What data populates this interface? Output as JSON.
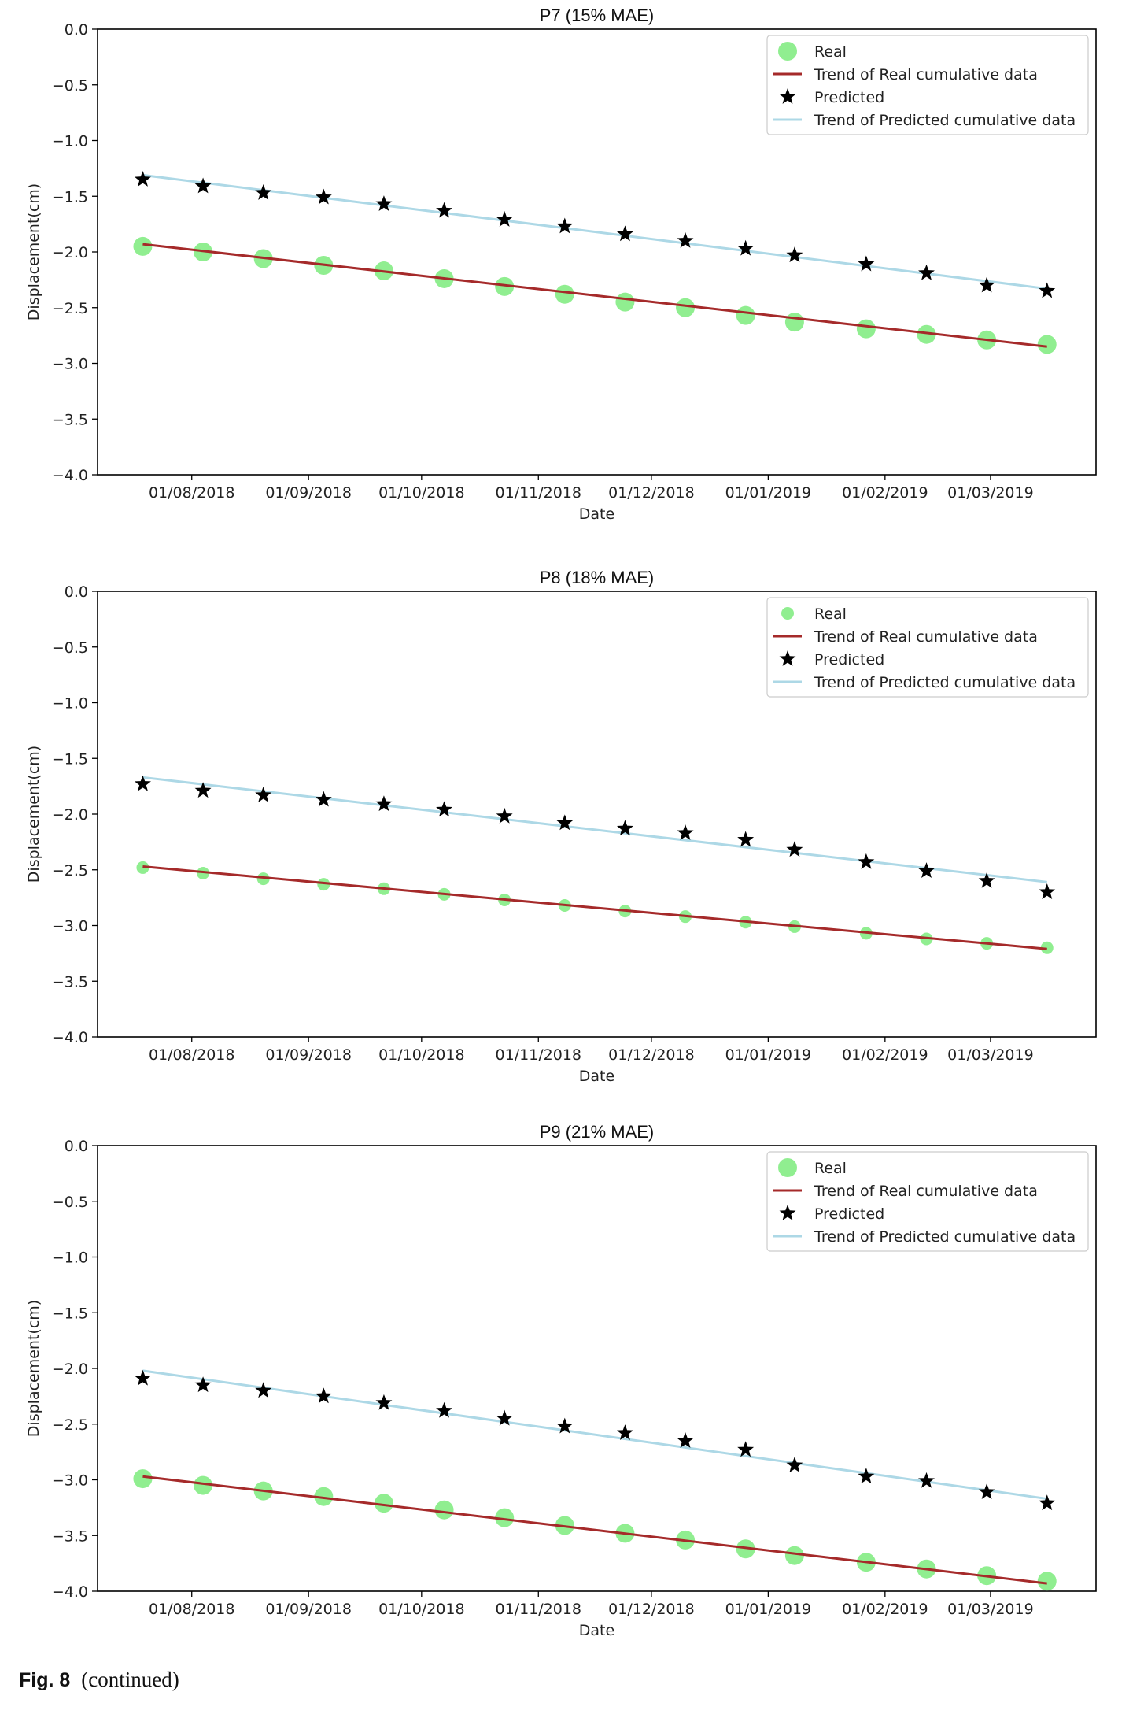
{
  "caption": {
    "label": "Fig. 8",
    "text": "(continued)"
  },
  "colors": {
    "real": "#90ee90",
    "trend_real": "#a52a2a",
    "predicted": "#000000",
    "trend_predicted": "#add8e6"
  },
  "chart_data": [
    {
      "type": "scatter",
      "title_prefix": "P7",
      "title_suffix": "(15% MAE)",
      "xlabel": "Date",
      "ylabel": "Displacement(cm)",
      "ylim": [
        -4.0,
        0.0
      ],
      "yticks": [
        "0.0",
        "−0.5",
        "−1.0",
        "−1.5",
        "−2.0",
        "−2.5",
        "−3.0",
        "−3.5",
        "−4.0"
      ],
      "ytick_values": [
        0.0,
        -0.5,
        -1.0,
        -1.5,
        -2.0,
        -2.5,
        -3.0,
        -3.5,
        -4.0
      ],
      "xlim": [
        0,
        265
      ],
      "xticks": [
        "01/08/2018",
        "01/09/2018",
        "01/10/2018",
        "01/11/2018",
        "01/12/2018",
        "01/01/2019",
        "01/02/2019",
        "01/03/2019"
      ],
      "xtick_values": [
        25,
        56,
        86,
        117,
        147,
        178,
        209,
        237
      ],
      "legend": [
        "Real",
        "Trend of Real cumulative data",
        "Predicted",
        "Trend of Predicted cumulative data"
      ],
      "legend_position": "top-right",
      "x": [
        12,
        28,
        44,
        60,
        76,
        92,
        108,
        124,
        140,
        156,
        172,
        185,
        204,
        220,
        236,
        252
      ],
      "series": [
        {
          "name": "Real",
          "kind": "marker",
          "values": [
            -1.95,
            -2.0,
            -2.06,
            -2.12,
            -2.17,
            -2.24,
            -2.31,
            -2.38,
            -2.45,
            -2.5,
            -2.57,
            -2.63,
            -2.69,
            -2.74,
            -2.79,
            -2.83
          ]
        },
        {
          "name": "Trend of Real cumulative data",
          "kind": "line",
          "x": [
            12,
            252
          ],
          "values": [
            -1.93,
            -2.85
          ]
        },
        {
          "name": "Predicted",
          "kind": "marker",
          "values": [
            -1.35,
            -1.41,
            -1.47,
            -1.51,
            -1.57,
            -1.63,
            -1.71,
            -1.77,
            -1.84,
            -1.9,
            -1.97,
            -2.03,
            -2.11,
            -2.19,
            -2.3,
            -2.35
          ]
        },
        {
          "name": "Trend of Predicted cumulative data",
          "kind": "line",
          "x": [
            12,
            252
          ],
          "values": [
            -1.31,
            -2.33
          ]
        }
      ]
    },
    {
      "type": "scatter",
      "title_prefix": "P8",
      "title_suffix": "(18% MAE)",
      "xlabel": "Date",
      "ylabel": "Displacement(cm)",
      "ylim": [
        -4.0,
        0.0
      ],
      "yticks": [
        "0.0",
        "−0.5",
        "−1.0",
        "−1.5",
        "−2.0",
        "−2.5",
        "−3.0",
        "−3.5",
        "−4.0"
      ],
      "ytick_values": [
        0.0,
        -0.5,
        -1.0,
        -1.5,
        -2.0,
        -2.5,
        -3.0,
        -3.5,
        -4.0
      ],
      "xlim": [
        0,
        265
      ],
      "xticks": [
        "01/08/2018",
        "01/09/2018",
        "01/10/2018",
        "01/11/2018",
        "01/12/2018",
        "01/01/2019",
        "01/02/2019",
        "01/03/2019"
      ],
      "xtick_values": [
        25,
        56,
        86,
        117,
        147,
        178,
        209,
        237
      ],
      "legend": [
        "Real",
        "Trend of Real cumulative data",
        "Predicted",
        "Trend of Predicted cumulative data"
      ],
      "legend_position": "top-right",
      "x": [
        12,
        28,
        44,
        60,
        76,
        92,
        108,
        124,
        140,
        156,
        172,
        185,
        204,
        220,
        236,
        252
      ],
      "series": [
        {
          "name": "Real",
          "kind": "marker",
          "values": [
            -2.48,
            -2.53,
            -2.58,
            -2.63,
            -2.67,
            -2.72,
            -2.77,
            -2.82,
            -2.87,
            -2.92,
            -2.97,
            -3.01,
            -3.07,
            -3.12,
            -3.16,
            -3.2
          ]
        },
        {
          "name": "Trend of Real cumulative data",
          "kind": "line",
          "x": [
            12,
            252
          ],
          "values": [
            -2.47,
            -3.21
          ]
        },
        {
          "name": "Predicted",
          "kind": "marker",
          "values": [
            -1.73,
            -1.79,
            -1.83,
            -1.87,
            -1.91,
            -1.96,
            -2.02,
            -2.08,
            -2.13,
            -2.17,
            -2.23,
            -2.32,
            -2.43,
            -2.51,
            -2.6,
            -2.7
          ]
        },
        {
          "name": "Trend of Predicted cumulative data",
          "kind": "line",
          "x": [
            12,
            252
          ],
          "values": [
            -1.67,
            -2.61
          ]
        }
      ]
    },
    {
      "type": "scatter",
      "title_prefix": "P9",
      "title_suffix": "(21% MAE)",
      "xlabel": "Date",
      "ylabel": "Displacement(cm)",
      "ylim": [
        -4.0,
        0.0
      ],
      "yticks": [
        "0.0",
        "−0.5",
        "−1.0",
        "−1.5",
        "−2.0",
        "−2.5",
        "−3.0",
        "−3.5",
        "−4.0"
      ],
      "ytick_values": [
        0.0,
        -0.5,
        -1.0,
        -1.5,
        -2.0,
        -2.5,
        -3.0,
        -3.5,
        -4.0
      ],
      "xlim": [
        0,
        265
      ],
      "xticks": [
        "01/08/2018",
        "01/09/2018",
        "01/10/2018",
        "01/11/2018",
        "01/12/2018",
        "01/01/2019",
        "01/02/2019",
        "01/03/2019"
      ],
      "xtick_values": [
        25,
        56,
        86,
        117,
        147,
        178,
        209,
        237
      ],
      "legend": [
        "Real",
        "Trend of Real cumulative data",
        "Predicted",
        "Trend of Predicted cumulative data"
      ],
      "legend_position": "top-right",
      "x": [
        12,
        28,
        44,
        60,
        76,
        92,
        108,
        124,
        140,
        156,
        172,
        185,
        204,
        220,
        236,
        252
      ],
      "series": [
        {
          "name": "Real",
          "kind": "marker",
          "values": [
            -2.99,
            -3.05,
            -3.1,
            -3.15,
            -3.21,
            -3.27,
            -3.34,
            -3.41,
            -3.48,
            -3.54,
            -3.62,
            -3.68,
            -3.74,
            -3.8,
            -3.86,
            -3.91
          ]
        },
        {
          "name": "Trend of Real cumulative data",
          "kind": "line",
          "x": [
            12,
            252
          ],
          "values": [
            -2.97,
            -3.93
          ]
        },
        {
          "name": "Predicted",
          "kind": "marker",
          "values": [
            -2.09,
            -2.15,
            -2.2,
            -2.25,
            -2.31,
            -2.38,
            -2.45,
            -2.52,
            -2.58,
            -2.65,
            -2.73,
            -2.87,
            -2.97,
            -3.01,
            -3.11,
            -3.21
          ]
        },
        {
          "name": "Trend of Predicted cumulative data",
          "kind": "line",
          "x": [
            12,
            252
          ],
          "values": [
            -2.02,
            -3.17
          ]
        }
      ]
    }
  ]
}
